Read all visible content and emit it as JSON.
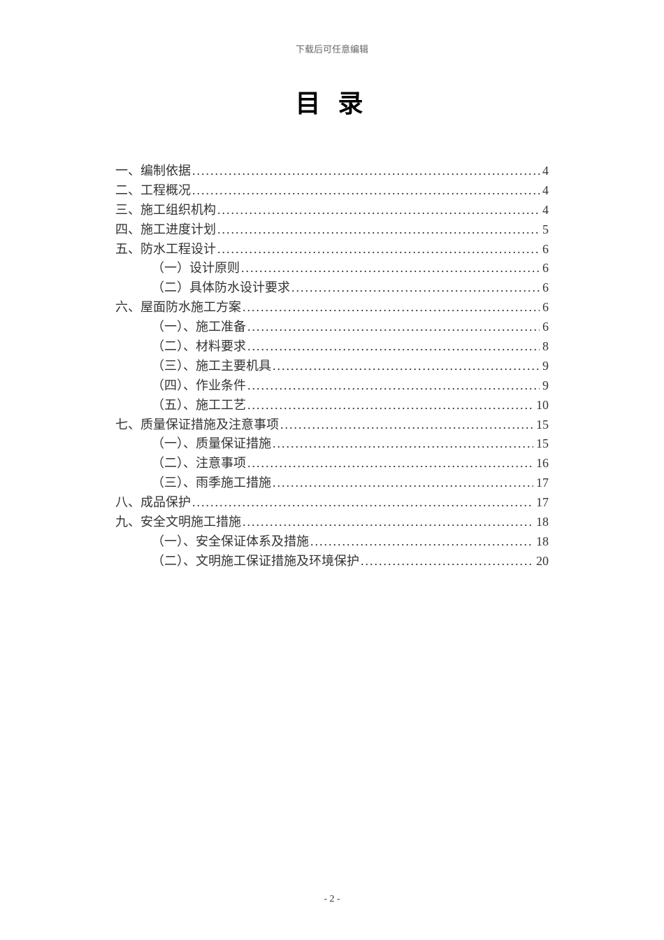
{
  "header_note": "下载后可任意编辑",
  "title": "目 录",
  "toc": [
    {
      "level": 1,
      "label": "一、编制依据",
      "page": "4"
    },
    {
      "level": 1,
      "label": "二、工程概况",
      "page": "4"
    },
    {
      "level": 1,
      "label": "三、施工组织机构",
      "page": "4"
    },
    {
      "level": 1,
      "label": "四、施工进度计划",
      "page": "5"
    },
    {
      "level": 1,
      "label": "五、防水工程设计",
      "page": "6"
    },
    {
      "level": 2,
      "label": "（一）设计原则",
      "page": "6"
    },
    {
      "level": 2,
      "label": "（二）具体防水设计要求",
      "page": "6"
    },
    {
      "level": 1,
      "label": "六、屋面防水施工方案",
      "page": "6"
    },
    {
      "level": 2,
      "label": "（一）、施工准备",
      "page": "6"
    },
    {
      "level": 2,
      "label": "（二）、材料要求",
      "page": "8"
    },
    {
      "level": 2,
      "label": "（三）、施工主要机具",
      "page": "9"
    },
    {
      "level": 2,
      "label": "（四）、作业条件",
      "page": "9"
    },
    {
      "level": 2,
      "label": "（五）、施工工艺",
      "page": "10"
    },
    {
      "level": 1,
      "label": "七、质量保证措施及注意事项",
      "page": "15"
    },
    {
      "level": 2,
      "label": "（一）、质量保证措施",
      "page": "15"
    },
    {
      "level": 2,
      "label": "（二）、注意事项",
      "page": "16"
    },
    {
      "level": 2,
      "label": "（三）、雨季施工措施",
      "page": "17"
    },
    {
      "level": 1,
      "label": "八、成品保护",
      "page": "17"
    },
    {
      "level": 1,
      "label": "九、安全文明施工措施",
      "page": "18"
    },
    {
      "level": 2,
      "label": "（一）、安全保证体系及措施",
      "page": "18"
    },
    {
      "level": 2,
      "label": "（二）、文明施工保证措施及环境保护",
      "page": "20"
    }
  ],
  "footer": "- 2 -",
  "colors": {
    "background": "#ffffff",
    "text": "#333333",
    "header_note": "#666666"
  }
}
